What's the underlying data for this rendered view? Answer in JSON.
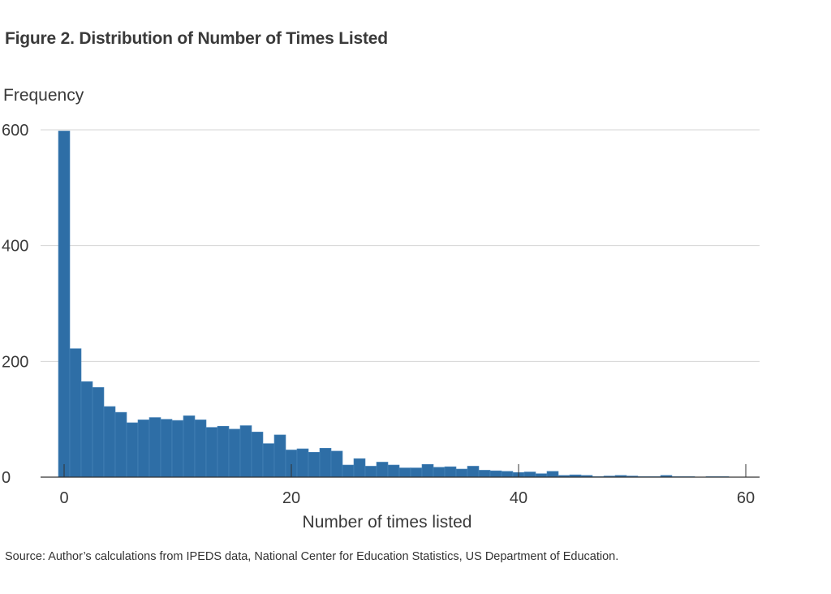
{
  "figure": {
    "title": "Figure 2. Distribution of Number of Times Listed",
    "source": "Source: Author’s calculations from IPEDS data, National Center for Education Statistics, US Department of Education."
  },
  "chart_data": {
    "type": "bar",
    "title": "Figure 2. Distribution of Number of Times Listed",
    "xlabel": "Number of times listed",
    "ylabel": "Frequency",
    "xlim": [
      -1,
      61
    ],
    "ylim": [
      0,
      600
    ],
    "x_ticks": [
      0,
      20,
      40,
      60
    ],
    "y_ticks": [
      0,
      200,
      400,
      600
    ],
    "grid": true,
    "bar_color": "#2e6ea6",
    "bin_width": 1,
    "series": [
      {
        "x": [
          0,
          1,
          2,
          3,
          4,
          5,
          6,
          7,
          8,
          9,
          10,
          11,
          12,
          13,
          14,
          15,
          16,
          17,
          18,
          19,
          20,
          21,
          22,
          23,
          24,
          25,
          26,
          27,
          28,
          29,
          30,
          31,
          32,
          33,
          34,
          35,
          36,
          37,
          38,
          39,
          40,
          41,
          42,
          43,
          44,
          45,
          46,
          47,
          48,
          49,
          50,
          51,
          52,
          53,
          54,
          55,
          56,
          57,
          58,
          59,
          60
        ],
        "values": [
          598,
          222,
          165,
          155,
          122,
          112,
          94,
          99,
          103,
          100,
          98,
          106,
          99,
          86,
          88,
          83,
          89,
          78,
          58,
          73,
          47,
          49,
          43,
          50,
          45,
          21,
          32,
          19,
          26,
          21,
          16,
          16,
          22,
          17,
          18,
          14,
          19,
          12,
          11,
          10,
          8,
          9,
          6,
          10,
          3,
          4,
          3,
          1,
          2,
          3,
          2,
          1,
          1,
          3,
          1,
          1,
          0,
          1,
          1,
          0,
          0
        ]
      }
    ]
  }
}
